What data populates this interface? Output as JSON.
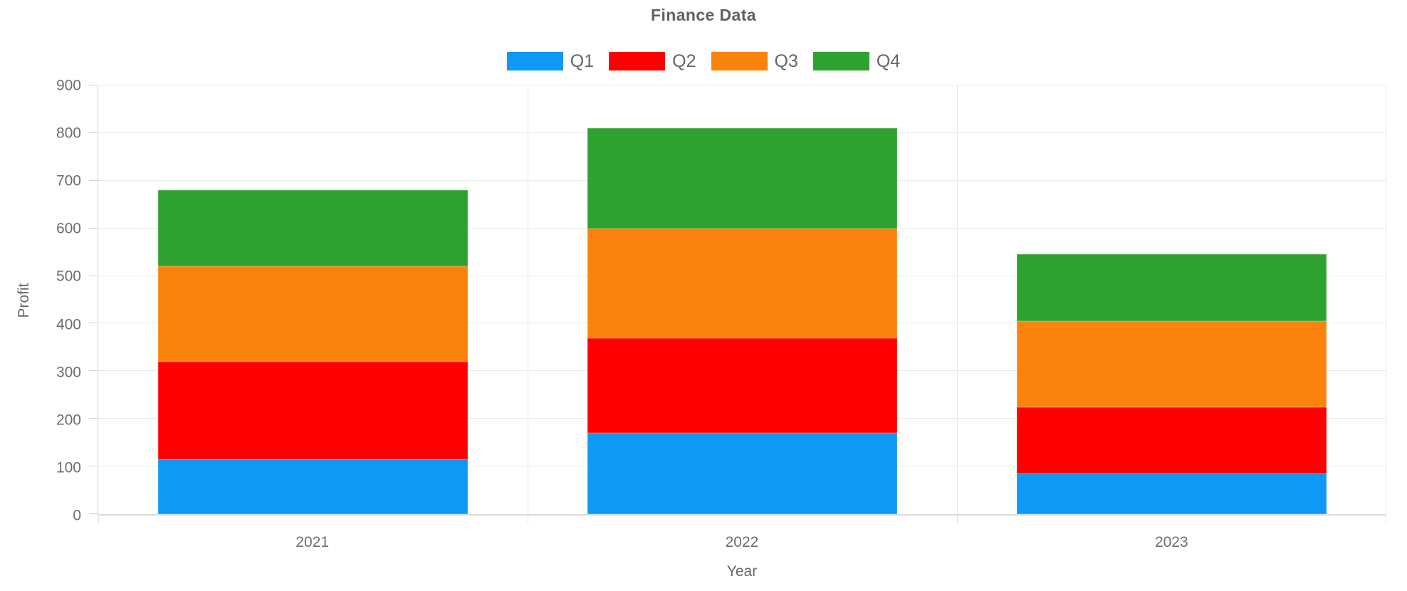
{
  "chart_data": {
    "type": "bar",
    "stacked": true,
    "title": "Finance Data",
    "xlabel": "Year",
    "ylabel": "Profit",
    "categories": [
      "2021",
      "2022",
      "2023"
    ],
    "series": [
      {
        "name": "Q1",
        "color": "#0d99f5",
        "values": [
          115,
          170,
          85
        ]
      },
      {
        "name": "Q2",
        "color": "#fe0000",
        "values": [
          205,
          200,
          140
        ]
      },
      {
        "name": "Q3",
        "color": "#fb820c",
        "values": [
          200,
          230,
          180
        ]
      },
      {
        "name": "Q4",
        "color": "#2ea22e",
        "values": [
          160,
          210,
          140
        ]
      }
    ],
    "stack_totals": [
      680,
      810,
      545
    ],
    "ylim": [
      0,
      900
    ],
    "ytick_step": 100,
    "yticks": [
      0,
      100,
      200,
      300,
      400,
      500,
      600,
      700,
      800,
      900
    ],
    "grid": true,
    "legend_position": "top"
  },
  "colors": {
    "grid": "#e9e9e9",
    "axis": "#d4d4d4",
    "text": "#666666"
  }
}
